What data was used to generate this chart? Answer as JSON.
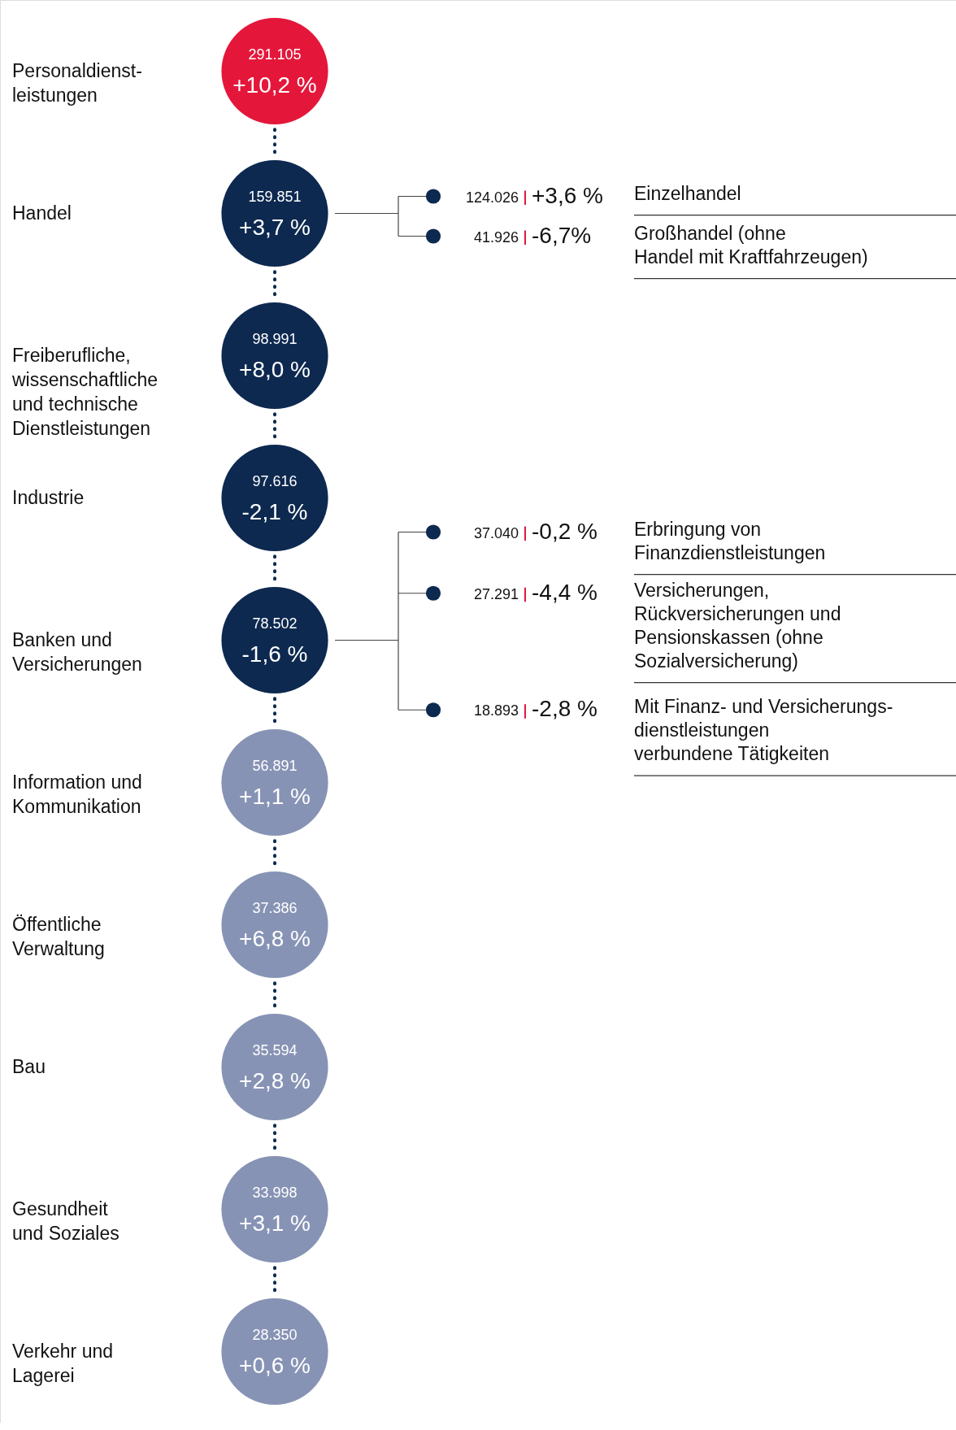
{
  "chart_data": [
    {
      "type": "other",
      "categories": [
        "Personaldienst-\nleistungen",
        "Handel",
        "Freiberufliche,\nwissenschaftliche\nund technische\nDienstleistungen",
        "Industrie",
        "Banken und\nVersicherungen",
        "Information und\nKommunikation",
        "Öffentliche\nVerwaltung",
        "Bau",
        "Gesundheit\nund Soziales",
        "Verkehr und\nLagerei"
      ],
      "series": [
        {
          "values": [
            291105,
            159851,
            98991,
            97616,
            78502,
            56891,
            37386,
            35594,
            33998,
            28350
          ],
          "value_labels": [
            "291.105",
            "159.851",
            "98.991",
            "97.616",
            "78.502",
            "56.891",
            "37.386",
            "35.594",
            "33.998",
            "28.350"
          ],
          "colors": [
            "#e4173b",
            "#0d2950",
            "#0d2950",
            "#0d2950",
            "#0d2950",
            "#8793b5",
            "#8793b5",
            "#8793b5",
            "#8793b5",
            "#8793b5"
          ]
        },
        {
          "values": [
            10.2,
            3.7,
            8.0,
            -2.1,
            -1.6,
            1.1,
            6.8,
            2.8,
            3.1,
            0.6
          ],
          "value_labels": [
            "+10,2 %",
            "+3,7 %",
            "+8,0 %",
            "-2,1 %",
            "-1,6 %",
            "+1,1 %",
            "+6,8 %",
            "+2,8 %",
            "+3,1 %",
            "+0,6 %"
          ]
        }
      ]
    },
    {
      "type": "other",
      "categories": [
        "Einzelhandel",
        "Großhandel (ohne\nHandel mit Kraftfahrzeugen)"
      ],
      "series": [
        {
          "values": [
            124026,
            41926
          ],
          "value_labels": [
            "124.026",
            "41.926"
          ],
          "color": "#0d2950"
        },
        {
          "values": [
            3.6,
            -6.7
          ],
          "value_labels": [
            "+3,6 %",
            "-6,7%"
          ]
        }
      ]
    },
    {
      "type": "other",
      "categories": [
        "Erbringung von\nFinanzdienstleistungen",
        "Versicherungen,\nRückversicherungen und\nPensionskassen (ohne\nSozialversicherung)",
        "Mit Finanz- und Versicherungs-\ndienstleistungen\nverbundene Tätigkeiten"
      ],
      "series": [
        {
          "values": [
            37040,
            27291,
            18893
          ],
          "value_labels": [
            "37.040",
            "27.291",
            "18.893"
          ],
          "color": "#0d2950"
        },
        {
          "values": [
            -0.2,
            -4.4,
            -2.8
          ],
          "value_labels": [
            "-0,2 %",
            "-4,4 %",
            "-2,8 %"
          ]
        }
      ]
    }
  ]
}
